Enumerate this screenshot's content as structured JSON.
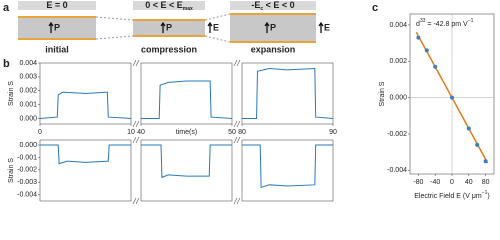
{
  "diagram": {
    "panel_label": "a",
    "states": [
      {
        "condition": [
          "E = 0"
        ],
        "polarization": "P",
        "label": "initial"
      },
      {
        "condition": [
          "0 < E < E",
          "max"
        ],
        "polarization": "P",
        "field": "E",
        "label": "compression"
      },
      {
        "condition": [
          "-E",
          "c",
          " < E < 0"
        ],
        "polarization": "P",
        "field": "E",
        "label": "expansion"
      }
    ]
  },
  "chart_data": [
    {
      "type": "line",
      "panel_label": "b",
      "ylabel": "Strain S",
      "xlabel": "time(s)",
      "x_segments": [
        [
          0,
          10
        ],
        [
          40,
          50
        ],
        [
          80,
          90
        ]
      ],
      "xticks": [
        0,
        10,
        40,
        50,
        80,
        90
      ],
      "ylim": [
        -0.0004,
        0.004
      ],
      "yticks": [
        {
          "value": 0,
          "label": "0.000"
        },
        0.001,
        0.002,
        0.003,
        0.004
      ],
      "series": [
        {
          "color": "#2a78b8",
          "x": [
            0,
            1.9,
            2.0,
            2.5,
            5,
            7.4,
            7.5,
            10
          ],
          "values": [
            0,
            0.0001,
            0.0017,
            0.0019,
            0.0018,
            0.0019,
            0.0001,
            0
          ]
        },
        {
          "color": "#2a78b8",
          "x": [
            40,
            42,
            42.1,
            43,
            45,
            47.6,
            47.7,
            50
          ],
          "values": [
            0,
            0,
            0.0024,
            0.0026,
            0.0027,
            0.0027,
            0.0001,
            0
          ]
        },
        {
          "color": "#2a78b8",
          "x": [
            80,
            81.6,
            81.7,
            83,
            85,
            88,
            88.1,
            90
          ],
          "values": [
            0,
            0,
            0.0034,
            0.0036,
            0.0035,
            0.0036,
            0.0001,
            0
          ]
        }
      ]
    },
    {
      "type": "line",
      "ylabel": "Strain S",
      "x_segments": [
        [
          0,
          10
        ],
        [
          40,
          50
        ],
        [
          80,
          90
        ]
      ],
      "ylim": [
        -0.0045,
        0.0004
      ],
      "yticks": [
        {
          "value": 0,
          "label": "0.000"
        },
        -0.001,
        -0.002,
        -0.003,
        -0.004
      ],
      "series": [
        {
          "color": "#2a78b8",
          "x": [
            0,
            2,
            2.1,
            3,
            5,
            7.5,
            7.6,
            10
          ],
          "values": [
            0,
            0,
            -0.0015,
            -0.0013,
            -0.0014,
            -0.0013,
            0,
            0
          ]
        },
        {
          "color": "#2a78b8",
          "x": [
            40,
            42.2,
            42.3,
            43,
            45,
            47.5,
            47.6,
            50
          ],
          "values": [
            0,
            0,
            -0.0026,
            -0.0024,
            -0.0025,
            -0.0025,
            0,
            0
          ]
        },
        {
          "color": "#2a78b8",
          "x": [
            80,
            82,
            82.1,
            83,
            85,
            88,
            88.1,
            90
          ],
          "values": [
            0,
            0,
            -0.0034,
            -0.0032,
            -0.0033,
            -0.0032,
            0,
            0
          ]
        }
      ]
    },
    {
      "type": "scatter",
      "panel_label": "c",
      "ylabel": "Strain S",
      "xlabel": [
        "Electric Field E (V μm",
        "−1",
        ")"
      ],
      "annotation": [
        "d",
        "33",
        " = -42.8 pm V",
        "−1"
      ],
      "x": [
        -80,
        -60,
        -40,
        0,
        40,
        60,
        80
      ],
      "values": [
        0.0033,
        0.0026,
        0.0017,
        0,
        -0.0017,
        -0.0026,
        -0.0035
      ],
      "color": "#3a7ebf",
      "fit": {
        "color": "#e07b1a",
        "x": [
          -85,
          85
        ],
        "values": [
          0.0036,
          -0.0036
        ]
      },
      "xlim": [
        -100,
        100
      ],
      "xticks": [
        -80,
        -40,
        0,
        40,
        80
      ],
      "ylim": [
        -0.0042,
        0.0046
      ],
      "yticks": [
        0.004,
        0.002,
        {
          "value": 0,
          "label": "0.000"
        },
        -0.002,
        -0.004
      ],
      "zero_lines": true
    }
  ]
}
